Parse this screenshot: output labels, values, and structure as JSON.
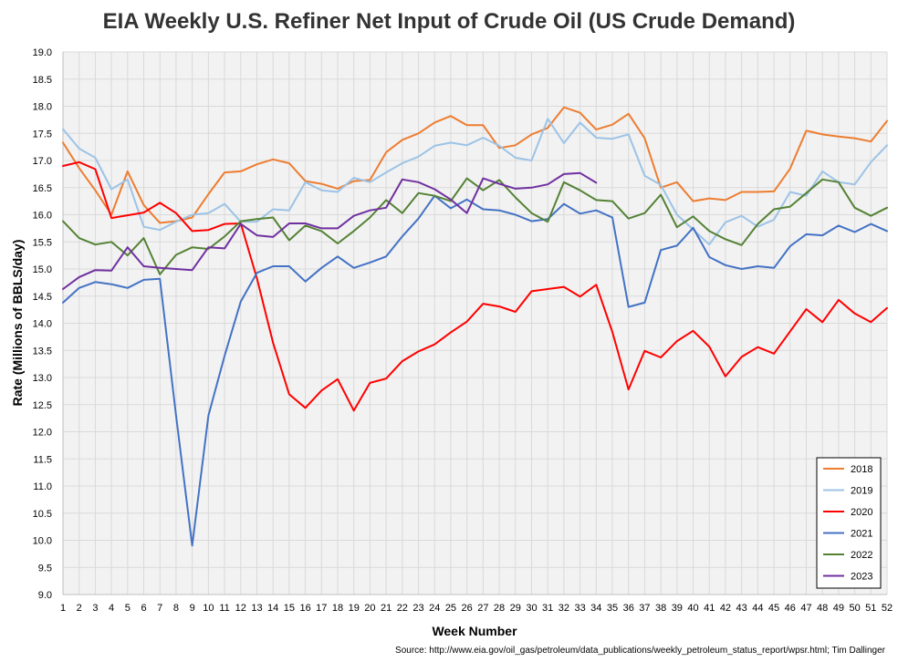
{
  "chart_data": {
    "type": "line",
    "title": "EIA Weekly U.S. Refiner Net Input of Crude Oil (US Crude Demand)",
    "xlabel": "Week Number",
    "ylabel": "Rate (Millions of BBLS/day)",
    "source": "Source: http://www.eia.gov/oil_gas/petroleum/data_publications/weekly_petroleum_status_report/wpsr.html; Tim Dallinger",
    "xlim": [
      1,
      52
    ],
    "ylim": [
      9.0,
      19.0
    ],
    "ytick_step": 0.5,
    "grid": true,
    "legend_position": "bottom-right",
    "x": [
      1,
      2,
      3,
      4,
      5,
      6,
      7,
      8,
      9,
      10,
      11,
      12,
      13,
      14,
      15,
      16,
      17,
      18,
      19,
      20,
      21,
      22,
      23,
      24,
      25,
      26,
      27,
      28,
      29,
      30,
      31,
      32,
      33,
      34,
      35,
      36,
      37,
      38,
      39,
      40,
      41,
      42,
      43,
      44,
      45,
      46,
      47,
      48,
      49,
      50,
      51,
      52
    ],
    "series": [
      {
        "name": "2018",
        "color": "#ED7D31",
        "values": [
          17.33,
          16.86,
          16.45,
          16.0,
          16.8,
          16.18,
          15.85,
          15.88,
          15.95,
          16.38,
          16.78,
          16.8,
          16.93,
          17.02,
          16.95,
          16.62,
          16.57,
          16.48,
          16.62,
          16.64,
          17.15,
          17.38,
          17.5,
          17.7,
          17.82,
          17.65,
          17.65,
          17.23,
          17.28,
          17.48,
          17.6,
          17.98,
          17.88,
          17.57,
          17.66,
          17.86,
          17.41,
          16.5,
          16.6,
          16.25,
          16.3,
          16.27,
          16.42,
          16.42,
          16.43,
          16.85,
          17.55,
          17.48,
          17.44,
          17.41,
          17.35,
          17.73
        ]
      },
      {
        "name": "2019",
        "color": "#9DC3E6",
        "values": [
          17.58,
          17.22,
          17.05,
          16.47,
          16.65,
          15.78,
          15.72,
          15.87,
          16.0,
          16.03,
          16.2,
          15.87,
          15.87,
          16.1,
          16.08,
          16.6,
          16.45,
          16.42,
          16.68,
          16.6,
          16.78,
          16.95,
          17.07,
          17.27,
          17.33,
          17.28,
          17.42,
          17.27,
          17.05,
          17.0,
          17.77,
          17.32,
          17.7,
          17.42,
          17.4,
          17.48,
          16.72,
          16.55,
          16.0,
          15.73,
          15.45,
          15.86,
          15.98,
          15.78,
          15.91,
          16.42,
          16.35,
          16.8,
          16.6,
          16.56,
          16.97,
          17.28
        ]
      },
      {
        "name": "2020",
        "color": "#FF0000",
        "values": [
          16.9,
          16.97,
          16.84,
          15.94,
          15.99,
          16.04,
          16.22,
          16.03,
          15.7,
          15.72,
          15.83,
          15.84,
          14.83,
          13.64,
          12.69,
          12.44,
          12.76,
          12.97,
          12.39,
          12.9,
          12.98,
          13.3,
          13.48,
          13.61,
          13.83,
          14.03,
          14.36,
          14.31,
          14.21,
          14.59,
          14.63,
          14.67,
          14.49,
          14.71,
          13.84,
          12.78,
          13.49,
          13.37,
          13.67,
          13.86,
          13.57,
          13.02,
          13.38,
          13.56,
          13.44,
          13.85,
          14.26,
          14.02,
          14.43,
          14.18,
          14.02,
          14.28
        ]
      },
      {
        "name": "2021",
        "color": "#4472C4",
        "values": [
          14.38,
          14.65,
          14.76,
          14.72,
          14.65,
          14.8,
          14.82,
          12.3,
          9.9,
          12.3,
          13.4,
          14.4,
          14.93,
          15.05,
          15.05,
          14.77,
          15.02,
          15.23,
          15.02,
          15.12,
          15.23,
          15.6,
          15.93,
          16.35,
          16.12,
          16.28,
          16.1,
          16.08,
          16.0,
          15.88,
          15.92,
          16.2,
          16.02,
          16.08,
          15.95,
          14.3,
          14.38,
          15.35,
          15.43,
          15.76,
          15.22,
          15.07,
          15.0,
          15.05,
          15.02,
          15.42,
          15.64,
          15.62,
          15.8,
          15.68,
          15.83,
          15.7
        ]
      },
      {
        "name": "2022",
        "color": "#548235",
        "values": [
          15.88,
          15.57,
          15.45,
          15.5,
          15.25,
          15.57,
          14.9,
          15.26,
          15.4,
          15.37,
          15.6,
          15.88,
          15.92,
          15.95,
          15.53,
          15.8,
          15.7,
          15.47,
          15.7,
          15.95,
          16.27,
          16.03,
          16.4,
          16.35,
          16.25,
          16.67,
          16.45,
          16.64,
          16.32,
          16.03,
          15.87,
          16.6,
          16.45,
          16.27,
          16.25,
          15.93,
          16.03,
          16.37,
          15.77,
          15.97,
          15.7,
          15.55,
          15.44,
          15.83,
          16.1,
          16.15,
          16.4,
          16.65,
          16.6,
          16.13,
          15.98,
          16.13
        ]
      },
      {
        "name": "2023",
        "color": "#7030A0",
        "values": [
          14.63,
          14.85,
          14.98,
          14.97,
          15.4,
          15.05,
          15.02,
          15.0,
          14.98,
          15.4,
          15.38,
          15.83,
          15.62,
          15.59,
          15.84,
          15.84,
          15.75,
          15.75,
          15.98,
          16.08,
          16.13,
          16.65,
          16.6,
          16.47,
          16.28,
          16.03,
          16.67,
          16.57,
          16.48,
          16.5,
          16.56,
          16.75,
          16.77,
          16.59,
          null,
          null,
          null,
          null,
          null,
          null,
          null,
          null,
          null,
          null,
          null,
          null,
          null,
          null,
          null,
          null,
          null,
          null
        ]
      }
    ]
  }
}
